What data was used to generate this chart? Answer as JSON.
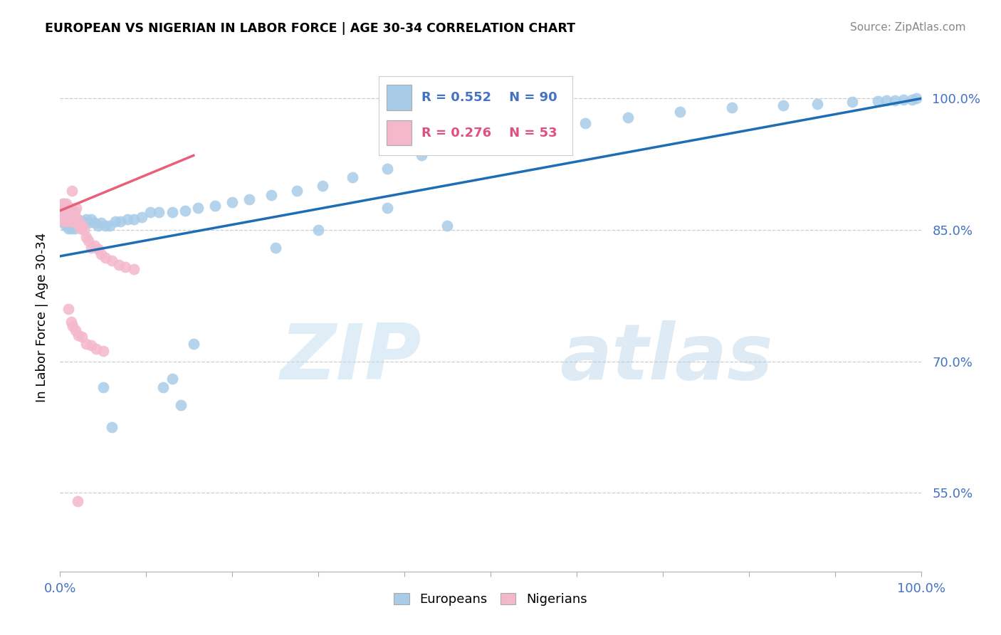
{
  "title": "EUROPEAN VS NIGERIAN IN LABOR FORCE | AGE 30-34 CORRELATION CHART",
  "source": "Source: ZipAtlas.com",
  "ylabel": "In Labor Force | Age 30-34",
  "ytick_labels": [
    "55.0%",
    "70.0%",
    "85.0%",
    "100.0%"
  ],
  "ytick_values": [
    0.55,
    0.7,
    0.85,
    1.0
  ],
  "legend_european": "Europeans",
  "legend_nigerian": "Nigerians",
  "r_european": 0.552,
  "n_european": 90,
  "r_nigerian": 0.276,
  "n_nigerian": 53,
  "color_european": "#a8cce8",
  "color_nigerian": "#f4b8cb",
  "color_european_line": "#1f6eb5",
  "color_nigerian_line": "#e8607a",
  "watermark_zip": "ZIP",
  "watermark_atlas": "atlas",
  "eu_x": [
    0.002,
    0.003,
    0.003,
    0.004,
    0.004,
    0.005,
    0.005,
    0.006,
    0.006,
    0.007,
    0.007,
    0.008,
    0.008,
    0.009,
    0.009,
    0.01,
    0.01,
    0.011,
    0.011,
    0.012,
    0.012,
    0.013,
    0.013,
    0.014,
    0.015,
    0.015,
    0.016,
    0.017,
    0.018,
    0.019,
    0.02,
    0.022,
    0.024,
    0.026,
    0.028,
    0.03,
    0.033,
    0.036,
    0.04,
    0.044,
    0.048,
    0.053,
    0.058,
    0.064,
    0.07,
    0.078,
    0.086,
    0.095,
    0.105,
    0.115,
    0.13,
    0.145,
    0.16,
    0.18,
    0.2,
    0.22,
    0.245,
    0.275,
    0.305,
    0.34,
    0.38,
    0.42,
    0.46,
    0.51,
    0.56,
    0.61,
    0.66,
    0.72,
    0.78,
    0.84,
    0.88,
    0.92,
    0.95,
    0.96,
    0.97,
    0.98,
    0.99,
    0.995,
    0.05,
    0.06,
    0.12,
    0.14,
    0.13,
    0.155,
    0.25,
    0.3,
    0.38,
    0.45
  ],
  "eu_y": [
    0.86,
    0.875,
    0.86,
    0.88,
    0.865,
    0.875,
    0.862,
    0.87,
    0.855,
    0.875,
    0.862,
    0.87,
    0.858,
    0.868,
    0.855,
    0.868,
    0.852,
    0.87,
    0.854,
    0.865,
    0.858,
    0.86,
    0.852,
    0.858,
    0.862,
    0.855,
    0.855,
    0.852,
    0.855,
    0.858,
    0.862,
    0.858,
    0.855,
    0.86,
    0.858,
    0.862,
    0.858,
    0.862,
    0.858,
    0.855,
    0.858,
    0.855,
    0.855,
    0.86,
    0.86,
    0.862,
    0.862,
    0.865,
    0.87,
    0.87,
    0.87,
    0.872,
    0.875,
    0.878,
    0.882,
    0.885,
    0.89,
    0.895,
    0.9,
    0.91,
    0.92,
    0.935,
    0.945,
    0.958,
    0.965,
    0.972,
    0.978,
    0.985,
    0.99,
    0.992,
    0.994,
    0.996,
    0.997,
    0.998,
    0.998,
    0.999,
    0.999,
    1.0,
    0.67,
    0.625,
    0.67,
    0.65,
    0.68,
    0.72,
    0.83,
    0.85,
    0.875,
    0.855
  ],
  "ng_x": [
    0.001,
    0.002,
    0.003,
    0.003,
    0.004,
    0.004,
    0.005,
    0.005,
    0.006,
    0.006,
    0.007,
    0.007,
    0.008,
    0.008,
    0.009,
    0.009,
    0.01,
    0.011,
    0.012,
    0.013,
    0.014,
    0.015,
    0.016,
    0.017,
    0.018,
    0.019,
    0.02,
    0.022,
    0.024,
    0.026,
    0.028,
    0.03,
    0.033,
    0.036,
    0.04,
    0.044,
    0.048,
    0.053,
    0.06,
    0.068,
    0.076,
    0.086,
    0.01,
    0.013,
    0.015,
    0.018,
    0.021,
    0.025,
    0.03,
    0.036,
    0.042,
    0.05,
    0.02
  ],
  "ng_y": [
    0.872,
    0.87,
    0.88,
    0.865,
    0.875,
    0.862,
    0.872,
    0.86,
    0.878,
    0.864,
    0.88,
    0.868,
    0.876,
    0.862,
    0.872,
    0.86,
    0.87,
    0.868,
    0.875,
    0.87,
    0.895,
    0.86,
    0.862,
    0.87,
    0.858,
    0.875,
    0.862,
    0.855,
    0.852,
    0.855,
    0.85,
    0.842,
    0.838,
    0.83,
    0.832,
    0.828,
    0.822,
    0.818,
    0.815,
    0.81,
    0.808,
    0.805,
    0.76,
    0.745,
    0.74,
    0.735,
    0.73,
    0.728,
    0.72,
    0.718,
    0.714,
    0.712,
    0.54
  ]
}
